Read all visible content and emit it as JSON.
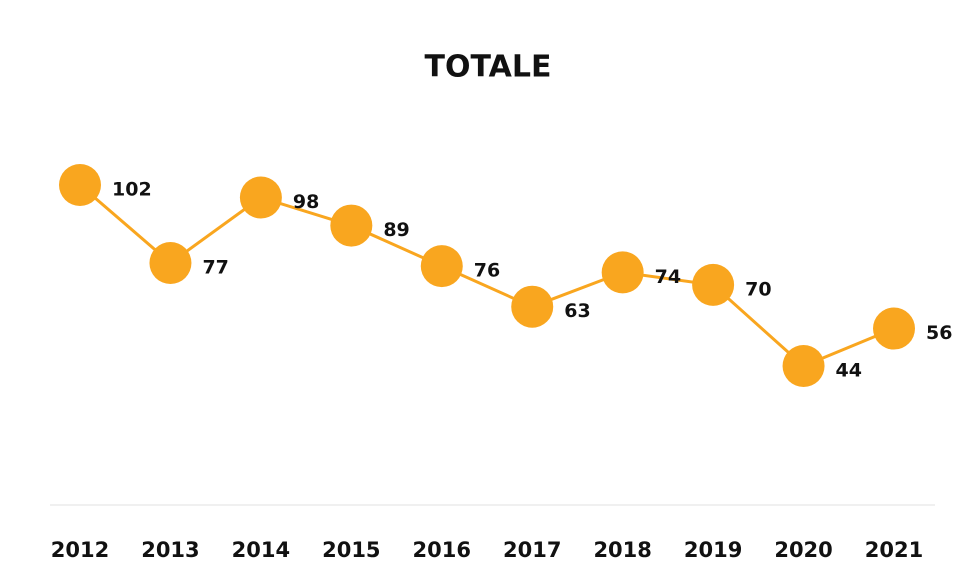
{
  "chart_data": {
    "type": "line",
    "title": "TOTALE",
    "categories": [
      "2012",
      "2013",
      "2014",
      "2015",
      "2016",
      "2017",
      "2018",
      "2019",
      "2020",
      "2021"
    ],
    "values": [
      102,
      77,
      98,
      89,
      76,
      63,
      74,
      70,
      44,
      56
    ],
    "color": "#f9a61f"
  }
}
